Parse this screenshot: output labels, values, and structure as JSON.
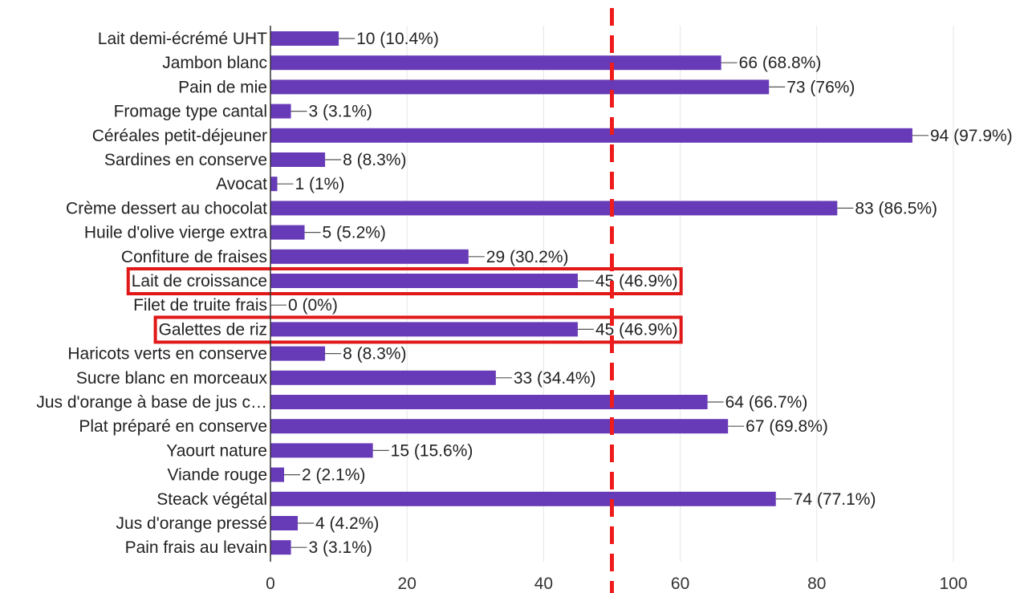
{
  "chart_data": {
    "type": "bar",
    "orientation": "horizontal",
    "title": "",
    "xlabel": "",
    "ylabel": "",
    "xlim": [
      0,
      100
    ],
    "x_ticks": [
      0,
      20,
      40,
      60,
      80,
      100
    ],
    "grid": true,
    "legend": "none",
    "categories": [
      "Lait demi-écrémé UHT",
      "Jambon blanc",
      "Pain de mie",
      "Fromage type cantal",
      "Céréales petit-déjeuner",
      "Sardines en conserve",
      "Avocat",
      "Crème dessert au chocolat",
      "Huile d'olive vierge extra",
      "Confiture de fraises",
      "Lait de croissance",
      "Filet de truite frais",
      "Galettes de riz",
      "Haricots verts en conserve",
      "Sucre blanc en morceaux",
      "Jus d'orange à base de jus c…",
      "Plat préparé en conserve",
      "Yaourt nature",
      "Viande rouge",
      "Steack végétal",
      "Jus d'orange pressé",
      "Pain frais au levain"
    ],
    "values": [
      10,
      66,
      73,
      3,
      94,
      8,
      1,
      83,
      5,
      29,
      45,
      0,
      45,
      8,
      33,
      64,
      67,
      15,
      2,
      74,
      4,
      3
    ],
    "data_labels": [
      "10 (10.4%)",
      "66 (68.8%)",
      "73 (76%)",
      "3 (3.1%)",
      "94 (97.9%)",
      "8 (8.3%)",
      "1 (1%)",
      "83 (86.5%)",
      "5 (5.2%)",
      "29 (30.2%)",
      "45 (46.9%)",
      "0 (0%)",
      "45 (46.9%)",
      "8 (8.3%)",
      "33 (34.4%)",
      "64 (66.7%)",
      "67 (69.8%)",
      "15 (15.6%)",
      "2 (2.1%)",
      "74 (77.1%)",
      "4 (4.2%)",
      "3 (3.1%)"
    ],
    "reference_line": {
      "x": 50,
      "style": "dashed",
      "color": "#ee1c1c"
    },
    "highlighted_categories": [
      "Lait de croissance",
      "Galettes de riz"
    ],
    "colors": {
      "bar": "#673ab7",
      "grid": "#e6e6e6",
      "axis": "#333333",
      "highlight_box": "#e01818",
      "leader": "#555555"
    }
  }
}
